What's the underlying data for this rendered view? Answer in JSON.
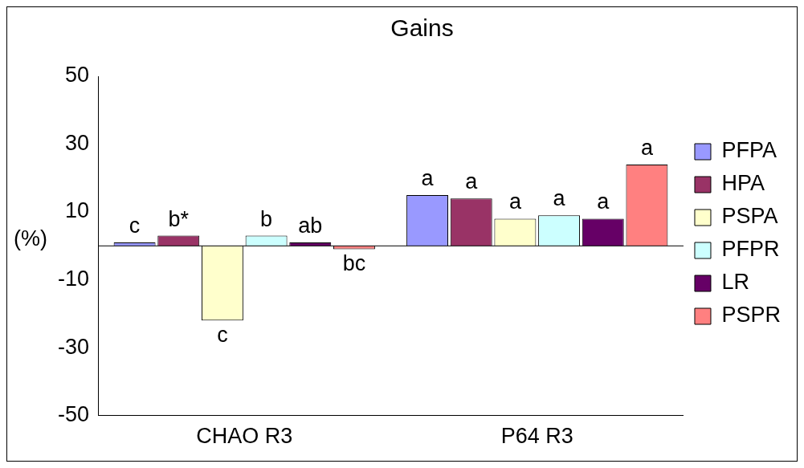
{
  "chart_data": {
    "type": "bar",
    "title": "Gains",
    "ylabel": "(%)",
    "categories": [
      "CHAO R3",
      "P64 R3"
    ],
    "series": [
      {
        "name": "PFPA",
        "color": "#9999ff",
        "values": [
          1,
          15
        ],
        "value_labels": [
          "c",
          "a"
        ]
      },
      {
        "name": "HPA",
        "color": "#993366",
        "values": [
          3,
          14
        ],
        "value_labels": [
          "b*",
          "a"
        ]
      },
      {
        "name": "PSPA",
        "color": "#ffffcc",
        "values": [
          -22,
          8
        ],
        "value_labels": [
          "c",
          "a"
        ]
      },
      {
        "name": "PFPR",
        "color": "#ccffff",
        "values": [
          3,
          9
        ],
        "value_labels": [
          "b",
          "a"
        ]
      },
      {
        "name": "LR",
        "color": "#660066",
        "values": [
          1,
          8
        ],
        "value_labels": [
          "ab",
          "a"
        ]
      },
      {
        "name": "PSPR",
        "color": "#ff8080",
        "values": [
          -1,
          24
        ],
        "value_labels": [
          "bc",
          "a"
        ]
      }
    ],
    "ylim": [
      -50,
      50
    ],
    "yticks": [
      -50,
      -30,
      -10,
      10,
      30,
      50
    ],
    "grid": false,
    "legend": "right",
    "ref_lines": [
      {
        "axis": "y",
        "value": 0
      }
    ]
  }
}
